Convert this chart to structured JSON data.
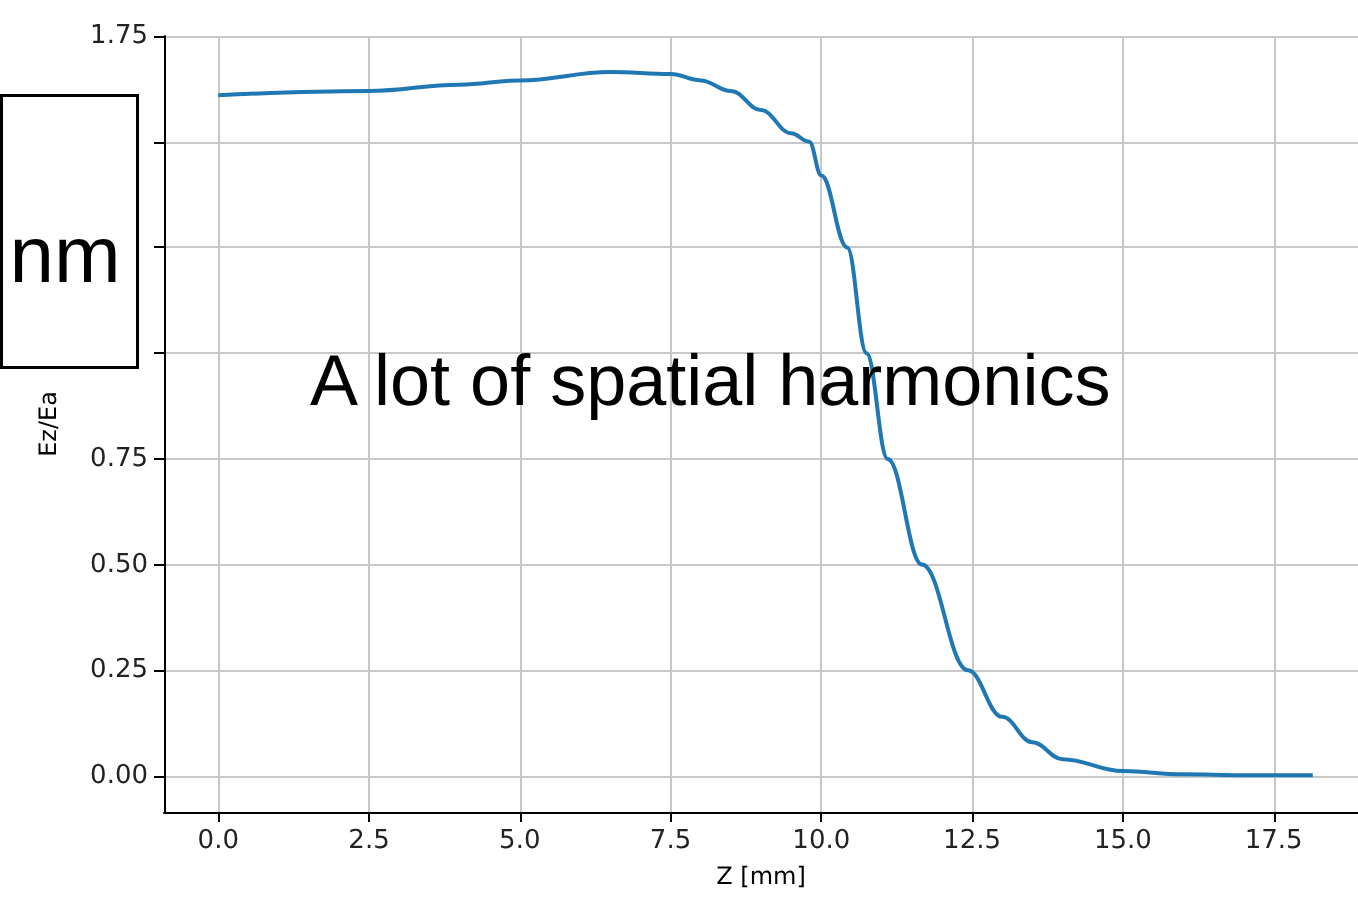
{
  "chart_data": {
    "type": "line",
    "xlabel": "Z [mm]",
    "ylabel": "Ez/Ea",
    "annotations": [
      "A lot of spatial harmonics",
      "nm"
    ],
    "x": [
      0,
      2.5,
      4,
      5,
      6.5,
      7.5,
      8,
      8.5,
      9,
      9.5,
      9.8,
      10,
      10.43,
      10.75,
      11.1,
      11.67,
      12.43,
      13,
      13.5,
      14,
      15,
      16,
      17,
      18.15
    ],
    "series": [
      {
        "color": "#1f77b4",
        "values": [
          1.61,
          1.62,
          1.635,
          1.645,
          1.665,
          1.66,
          1.645,
          1.62,
          1.575,
          1.52,
          1.5,
          1.42,
          1.25,
          1.0,
          0.75,
          0.5,
          0.25,
          0.14,
          0.08,
          0.04,
          0.012,
          0.004,
          0.002,
          0.002
        ]
      }
    ],
    "xlim": [
      -0.9,
      18.9
    ],
    "ylim": [
      -0.085,
      1.75
    ],
    "xticks": [
      {
        "value": 0,
        "label": "0.0"
      },
      2.5,
      {
        "value": 5,
        "label": "5.0"
      },
      7.5,
      {
        "value": 10,
        "label": "10.0"
      },
      12.5,
      {
        "value": 15,
        "label": "15.0"
      },
      17.5
    ],
    "yticks": [
      {
        "value": 0,
        "label": "0.00"
      },
      {
        "value": 0.25,
        "label": "0.25"
      },
      {
        "value": 0.5,
        "label": "0.50"
      },
      {
        "value": 0.75,
        "label": "0.75"
      },
      {
        "value": 1,
        "label": null
      },
      {
        "value": 1.25,
        "label": null
      },
      {
        "value": 1.5,
        "label": null
      },
      {
        "value": 1.75,
        "label": "1.75"
      }
    ],
    "grid": true,
    "marker": "none",
    "line_style": "solid"
  }
}
